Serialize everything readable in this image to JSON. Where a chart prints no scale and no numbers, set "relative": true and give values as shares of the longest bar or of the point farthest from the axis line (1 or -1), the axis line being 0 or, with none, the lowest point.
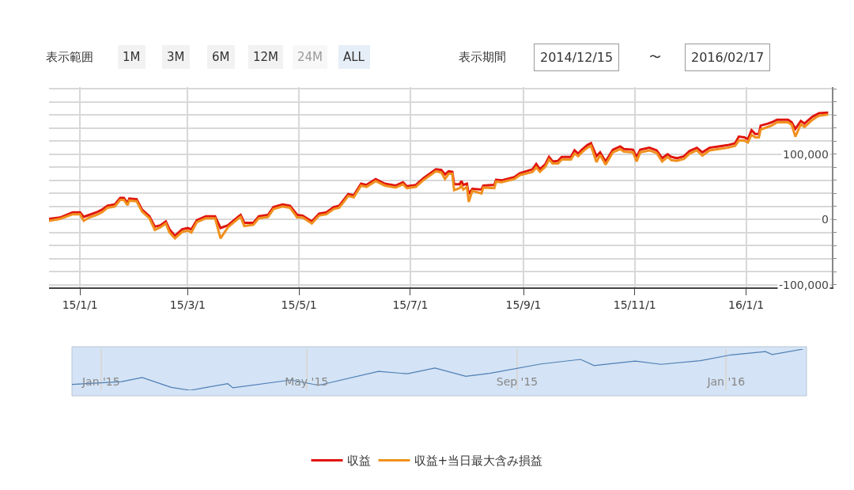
{
  "chart_data": [
    {
      "type": "line",
      "annotations": [
        "表示範囲",
        "1M",
        "3M",
        "6M",
        "12M",
        "24M",
        "ALL",
        "表示期間",
        "2014/12/15",
        "〜",
        "2016/02/17"
      ],
      "xlim": [
        "2014-12-15",
        "2016-02-17"
      ],
      "xticks": [
        {
          "value": "2015-01-01",
          "label": "15/1/1"
        },
        {
          "value": "2015-03-01",
          "label": "15/3/1"
        },
        {
          "value": "2015-05-01",
          "label": "15/5/1"
        },
        {
          "value": "2015-07-01",
          "label": "15/7/1"
        },
        {
          "value": "2015-09-01",
          "label": "15/9/1"
        },
        {
          "value": "2015-11-01",
          "label": "15/11/1"
        },
        {
          "value": "2016-01-01",
          "label": "16/1/1"
        }
      ],
      "ylim": [
        -104000,
        203000
      ],
      "yticks": [
        {
          "value": -100000,
          "label": "-100,000"
        },
        {
          "value": -80000,
          "label": null
        },
        {
          "value": -60000,
          "label": null
        },
        {
          "value": -40000,
          "label": null
        },
        {
          "value": -20000,
          "label": null
        },
        {
          "value": 0,
          "label": "0"
        },
        {
          "value": 20000,
          "label": null
        },
        {
          "value": 40000,
          "label": null
        },
        {
          "value": 60000,
          "label": null
        },
        {
          "value": 80000,
          "label": null
        },
        {
          "value": 100000,
          "label": "100,000"
        },
        {
          "value": 120000,
          "label": null
        },
        {
          "value": 140000,
          "label": null
        },
        {
          "value": 160000,
          "label": null
        },
        {
          "value": 180000,
          "label": null
        },
        {
          "value": 200000,
          "label": null
        }
      ],
      "grid": true,
      "legend": "bottom",
      "marker": "none",
      "line_style": "solid",
      "x": [
        "2014-12-15",
        "2014-12-21",
        "2014-12-28",
        "2015-01-01",
        "2015-01-03",
        "2015-01-06",
        "2015-01-10",
        "2015-01-13",
        "2015-01-16",
        "2015-01-20",
        "2015-01-23",
        "2015-01-25",
        "2015-01-27",
        "2015-01-28",
        "2015-02-01",
        "2015-02-04",
        "2015-02-08",
        "2015-02-11",
        "2015-02-14",
        "2015-02-17",
        "2015-02-19",
        "2015-02-22",
        "2015-02-26",
        "2015-03-01",
        "2015-03-03",
        "2015-03-06",
        "2015-03-11",
        "2015-03-16",
        "2015-03-19",
        "2015-03-23",
        "2015-03-29",
        "2015-03-30",
        "2015-04-01",
        "2015-04-06",
        "2015-04-09",
        "2015-04-14",
        "2015-04-17",
        "2015-04-22",
        "2015-04-26",
        "2015-04-30",
        "2015-05-03",
        "2015-05-08",
        "2015-05-12",
        "2015-05-16",
        "2015-05-20",
        "2015-05-23",
        "2015-05-28",
        "2015-05-31",
        "2015-06-04",
        "2015-06-07",
        "2015-06-12",
        "2015-06-17",
        "2015-06-23",
        "2015-06-27",
        "2015-06-29",
        "2015-07-04",
        "2015-07-08",
        "2015-07-15",
        "2015-07-18",
        "2015-07-20",
        "2015-07-22",
        "2015-07-24",
        "2015-07-25",
        "2015-07-28",
        "2015-07-29",
        "2015-07-30",
        "2015-08-01",
        "2015-08-02",
        "2015-08-04",
        "2015-08-09",
        "2015-08-10",
        "2015-08-16",
        "2015-08-17",
        "2015-08-20",
        "2015-08-27",
        "2015-08-30",
        "2015-09-06",
        "2015-09-08",
        "2015-09-10",
        "2015-09-13",
        "2015-09-15",
        "2015-09-17",
        "2015-09-20",
        "2015-09-22",
        "2015-09-27",
        "2015-09-29",
        "2015-10-01",
        "2015-10-03",
        "2015-10-06",
        "2015-10-08",
        "2015-10-11",
        "2015-10-13",
        "2015-10-16",
        "2015-10-20",
        "2015-10-24",
        "2015-10-26",
        "2015-10-31",
        "2015-11-02",
        "2015-11-04",
        "2015-11-09",
        "2015-11-13",
        "2015-11-16",
        "2015-11-19",
        "2015-11-21",
        "2015-11-24",
        "2015-11-28",
        "2015-12-01",
        "2015-12-05",
        "2015-12-08",
        "2015-12-12",
        "2015-12-17",
        "2015-12-22",
        "2015-12-26",
        "2015-12-28",
        "2015-12-31",
        "2016-01-02",
        "2016-01-04",
        "2016-01-06",
        "2016-01-08",
        "2016-01-09",
        "2016-01-13",
        "2016-01-15",
        "2016-01-18",
        "2016-01-24",
        "2016-01-26",
        "2016-01-28",
        "2016-01-31",
        "2016-02-02",
        "2016-02-06",
        "2016-02-08",
        "2016-02-10",
        "2016-02-15"
      ],
      "series": [
        {
          "name": "収益",
          "color": "#e0150e",
          "values": [
            1000,
            3000,
            11000,
            11000,
            4000,
            7000,
            11000,
            15000,
            21000,
            23000,
            33000,
            33000,
            25000,
            32000,
            31000,
            15000,
            5000,
            -11000,
            -9000,
            -3000,
            -15000,
            -25000,
            -15000,
            -13000,
            -15000,
            -1000,
            5000,
            5000,
            -13000,
            -9000,
            5000,
            7000,
            -5000,
            -5000,
            5000,
            7000,
            19000,
            23000,
            21000,
            7000,
            6000,
            -3000,
            9000,
            11000,
            19000,
            21000,
            39000,
            37000,
            55000,
            53000,
            62000,
            55000,
            52000,
            57000,
            51000,
            53000,
            63000,
            77000,
            76000,
            69000,
            74000,
            73000,
            54000,
            54000,
            59000,
            53000,
            55000,
            39000,
            47000,
            46000,
            52000,
            53000,
            61000,
            60000,
            65000,
            71000,
            77000,
            85000,
            77000,
            85000,
            96000,
            89000,
            90000,
            96000,
            96000,
            106000,
            101000,
            107000,
            114000,
            117000,
            97000,
            103000,
            89000,
            107000,
            112000,
            108000,
            107000,
            96000,
            107000,
            110000,
            106000,
            94000,
            100000,
            96000,
            94000,
            97000,
            105000,
            110000,
            103000,
            110000,
            112000,
            114000,
            117000,
            127000,
            126000,
            123000,
            137000,
            131000,
            131000,
            144000,
            147000,
            149000,
            153000,
            153000,
            149000,
            139000,
            151000,
            147000,
            157000,
            160000,
            163000,
            164000
          ]
        },
        {
          "name": "収益+当日最大含み損益",
          "color": "#f0901e",
          "values": [
            -2000,
            1000,
            8000,
            8000,
            -2000,
            3000,
            7000,
            11000,
            18000,
            20000,
            30000,
            30000,
            22000,
            29000,
            28000,
            12000,
            2000,
            -16000,
            -12000,
            -6000,
            -20000,
            -29000,
            -19000,
            -17000,
            -20000,
            -4000,
            2000,
            2000,
            -29000,
            -12000,
            2000,
            4000,
            -10000,
            -8000,
            2000,
            4000,
            16000,
            20000,
            18000,
            3000,
            3000,
            -6000,
            6000,
            8000,
            16000,
            18000,
            36000,
            34000,
            52000,
            50000,
            59000,
            52000,
            49000,
            54000,
            48000,
            50000,
            60000,
            74000,
            72000,
            62000,
            70000,
            70000,
            45000,
            48000,
            52000,
            46000,
            50000,
            27000,
            44000,
            40000,
            49000,
            48000,
            58000,
            57000,
            62000,
            68000,
            73000,
            80000,
            73000,
            81000,
            92000,
            86000,
            86000,
            92000,
            92000,
            101000,
            97000,
            103000,
            110000,
            113000,
            88000,
            99000,
            84000,
            103000,
            108000,
            104000,
            103000,
            89000,
            103000,
            106000,
            102000,
            89000,
            96000,
            91000,
            90000,
            93000,
            101000,
            106000,
            98000,
            106000,
            108000,
            110000,
            113000,
            121000,
            121000,
            118000,
            130000,
            126000,
            126000,
            138000,
            142000,
            144000,
            149000,
            149000,
            145000,
            127000,
            146000,
            142000,
            152000,
            156000,
            159000,
            161000
          ]
        }
      ]
    },
    {
      "type": "line",
      "relative": true,
      "tick_labels": "x",
      "grid": "x",
      "marker": "none",
      "line_style": "solid",
      "xlim": [
        "2014-12-15",
        "2016-02-17"
      ],
      "xticks": [
        {
          "value": "2015-01-01",
          "label": "Jan '15"
        },
        {
          "value": "2015-05-01",
          "label": "May '15"
        },
        {
          "value": "2015-09-01",
          "label": "Sep '15"
        },
        {
          "value": "2016-01-01",
          "label": "Jan '16"
        }
      ],
      "x": [
        "2014-12-15",
        "2015-01-13",
        "2015-01-25",
        "2015-02-11",
        "2015-02-22",
        "2015-03-16",
        "2015-03-19",
        "2015-04-22",
        "2015-05-08",
        "2015-06-12",
        "2015-06-29",
        "2015-07-15",
        "2015-08-02",
        "2015-08-16",
        "2015-09-15",
        "2015-10-08",
        "2015-10-16",
        "2015-11-09",
        "2015-11-24",
        "2015-12-17",
        "2016-01-04",
        "2016-01-24",
        "2016-01-28",
        "2016-02-15"
      ],
      "series": [
        {
          "color": "#4d7fb5",
          "values": [
            0.14,
            0.21,
            0.31,
            0.07,
            0,
            0.16,
            0.06,
            0.25,
            0.12,
            0.46,
            0.4,
            0.54,
            0.34,
            0.41,
            0.64,
            0.75,
            0.6,
            0.71,
            0.63,
            0.72,
            0.86,
            0.94,
            0.87,
            1
          ]
        }
      ]
    }
  ]
}
